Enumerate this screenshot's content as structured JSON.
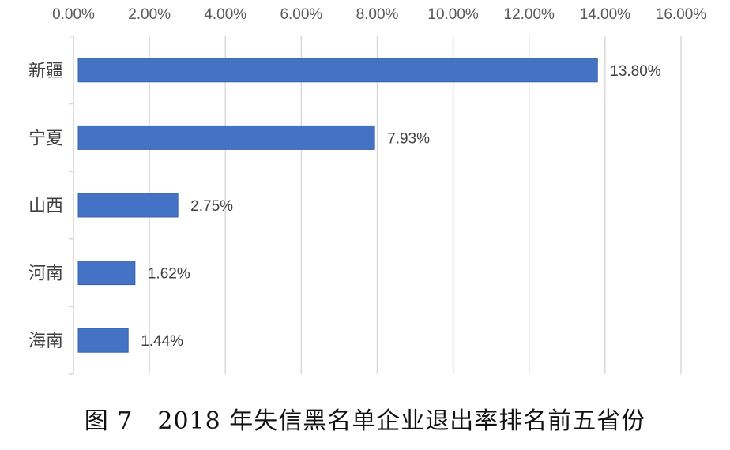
{
  "caption": "图 7　2018 年失信黑名单企业退出率排名前五省份",
  "chart_data": {
    "type": "bar",
    "orientation": "horizontal",
    "categories": [
      "新疆",
      "宁夏",
      "山西",
      "河南",
      "海南"
    ],
    "values": [
      13.8,
      7.93,
      2.75,
      1.62,
      1.44
    ],
    "data_labels": [
      "13.80%",
      "7.93%",
      "2.75%",
      "1.62%",
      "1.44%"
    ],
    "x_ticks": [
      "0.00%",
      "2.00%",
      "4.00%",
      "6.00%",
      "8.00%",
      "10.00%",
      "12.00%",
      "14.00%",
      "16.00%"
    ],
    "xlim": [
      0,
      16
    ],
    "x_axis_position": "top",
    "grid": true,
    "bar_color": "#4472C4",
    "grid_color": "#D9D9D9"
  }
}
